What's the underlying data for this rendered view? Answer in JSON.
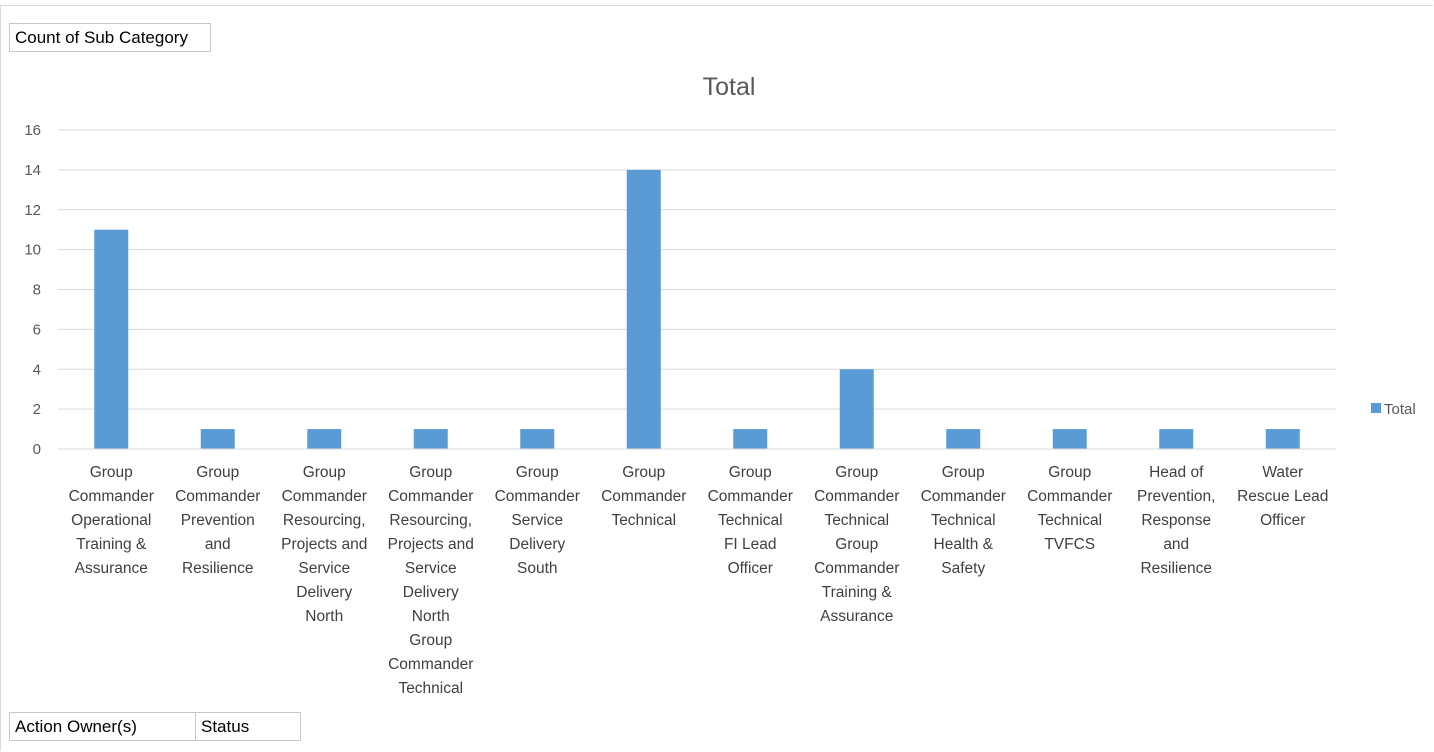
{
  "filter_buttons": {
    "values_field": "Count of Sub Category",
    "row_fields": [
      "Action Owner(s)",
      "Status"
    ]
  },
  "chart_data": {
    "type": "bar",
    "title": "Total",
    "xlabel": "",
    "ylabel": "",
    "ylim": [
      0,
      16
    ],
    "yticks": [
      0,
      2,
      4,
      6,
      8,
      10,
      12,
      14,
      16
    ],
    "grid": true,
    "legend_position": "right",
    "bar_color": "#5b9bd5",
    "categories": [
      "Group Commander Operational Training & Assurance",
      "Group Commander Prevention and Resilience",
      "Group Commander Resourcing, Projects and Service Delivery North",
      "Group Commander Resourcing, Projects and Service Delivery North Group Commander Technical",
      "Group Commander Service Delivery South",
      "Group Commander Technical",
      "Group Commander Technical FI Lead Officer",
      "Group Commander Technical Group Commander Training & Assurance",
      "Group Commander Technical Health & Safety",
      "Group Commander Technical TVFCS",
      "Head of Prevention, Response and Resilience",
      "Water Rescue Lead Officer"
    ],
    "category_label_lines": [
      [
        "Group",
        "Commander",
        "Operational",
        "Training &",
        "Assurance"
      ],
      [
        "Group",
        "Commander",
        "Prevention",
        "and",
        "Resilience"
      ],
      [
        "Group",
        "Commander",
        "Resourcing,",
        "Projects and",
        "Service",
        "Delivery",
        "North"
      ],
      [
        "Group",
        "Commander",
        "Resourcing,",
        "Projects and",
        "Service",
        "Delivery",
        "North",
        "Group",
        "Commander",
        "Technical"
      ],
      [
        "Group",
        "Commander",
        "Service",
        "Delivery",
        "South"
      ],
      [
        "Group",
        "Commander",
        "Technical"
      ],
      [
        "Group",
        "Commander",
        "Technical",
        "FI Lead",
        "Officer"
      ],
      [
        "Group",
        "Commander",
        "Technical",
        "Group",
        "Commander",
        "Training &",
        "Assurance"
      ],
      [
        "Group",
        "Commander",
        "Technical",
        "Health &",
        "Safety"
      ],
      [
        "Group",
        "Commander",
        "Technical",
        "TVFCS"
      ],
      [
        "Head of",
        "Prevention,",
        "Response",
        "and",
        "Resilience"
      ],
      [
        "Water",
        "Rescue Lead",
        "Officer"
      ]
    ],
    "series": [
      {
        "name": "Total",
        "values": [
          11,
          1,
          1,
          1,
          1,
          14,
          1,
          4,
          1,
          1,
          1,
          1
        ]
      }
    ]
  }
}
